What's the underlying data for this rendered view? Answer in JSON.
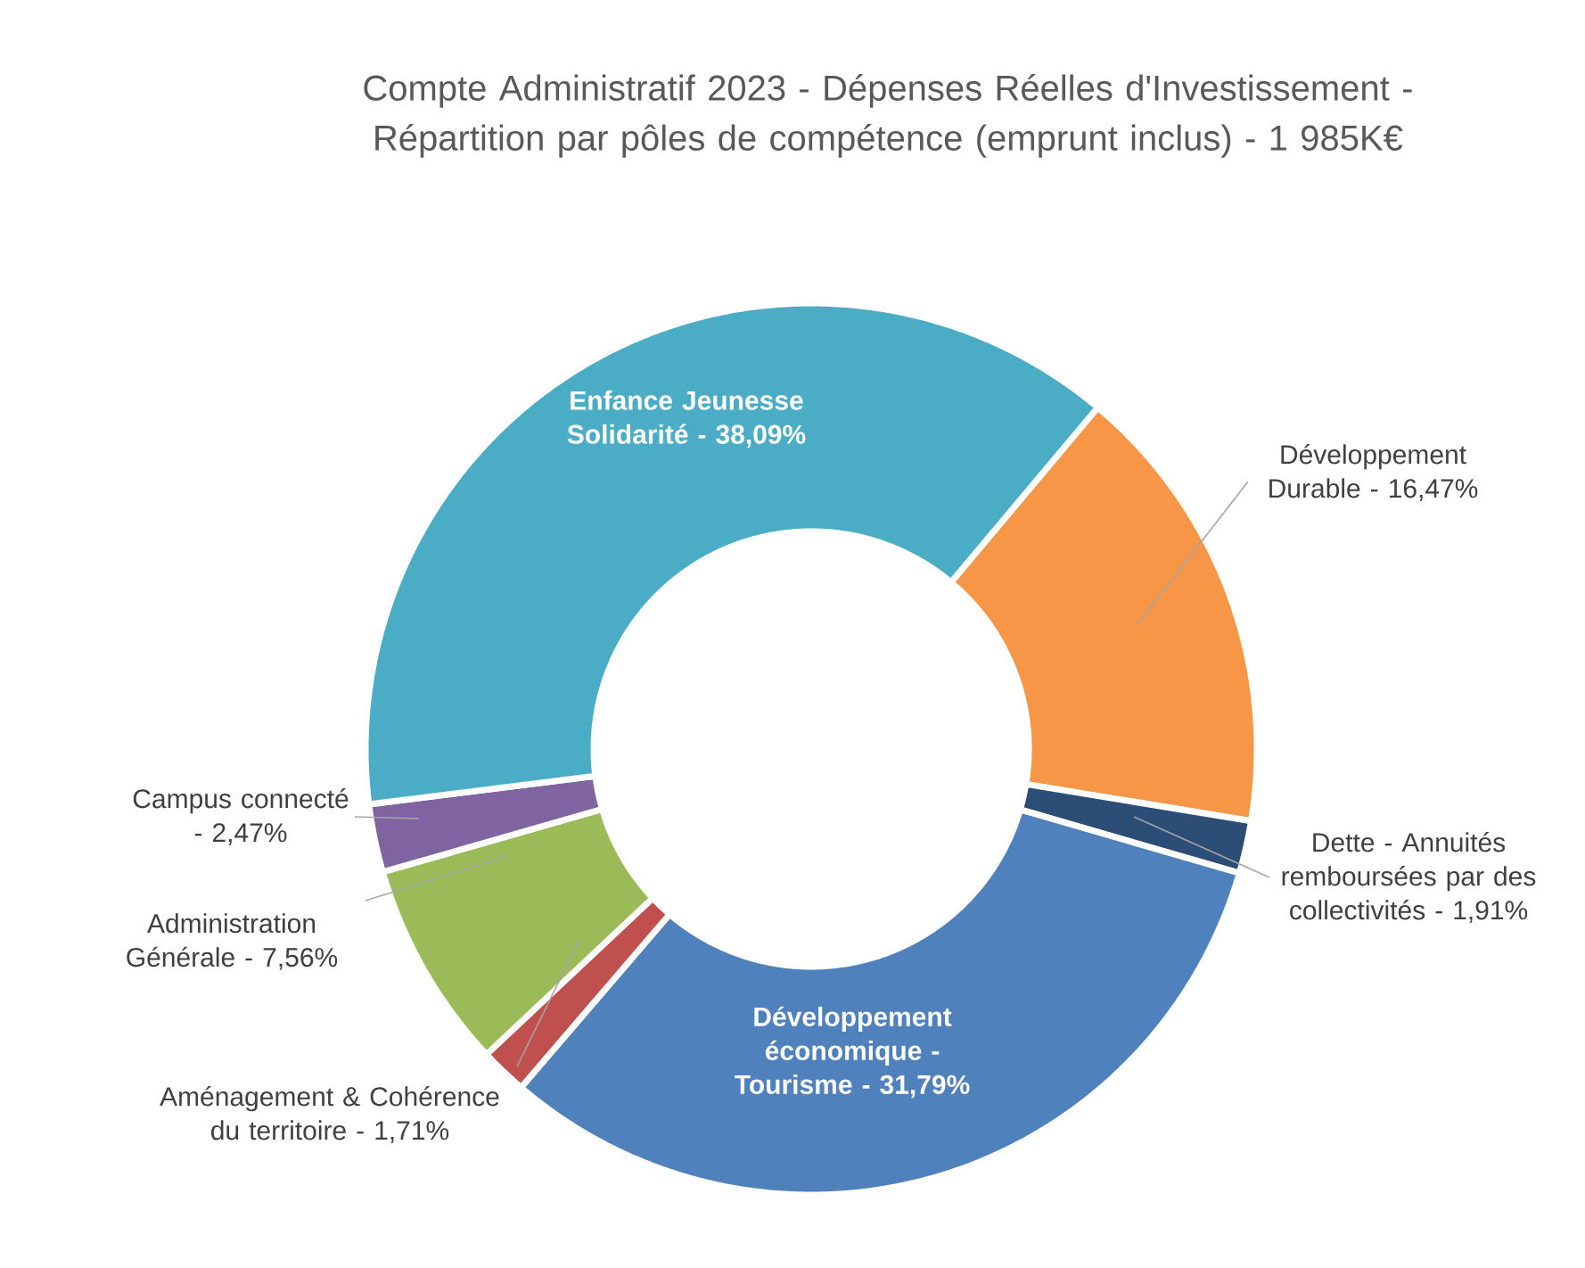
{
  "chart_data": {
    "type": "donut",
    "title": "Compte Administratif 2023 - Dépenses Réelles d'Investissement - Répartition par pôles de compétence (emprunt inclus) - 1 985K€",
    "categories": [
      "Développement Durable -",
      "Dette - Annuités remboursées par des collectivités -",
      "Développement économique - Tourisme -",
      "Aménagement & Cohérence du territoire -",
      "Administration Générale -",
      "Campus connecté -",
      "Enfance Jeunesse Solidarité -"
    ],
    "values": [
      16.47,
      1.91,
      31.79,
      1.71,
      7.56,
      2.47,
      38.09
    ],
    "value_labels": [
      "16,47%",
      "1,91%",
      "31,79%",
      "1,71%",
      "7,56%",
      "2,47%",
      "38,09%"
    ],
    "colors": [
      "#f79646",
      "#2c4d75",
      "#4f81bd",
      "#c0504d",
      "#9bbb59",
      "#8064a2",
      "#4bacc6"
    ]
  }
}
